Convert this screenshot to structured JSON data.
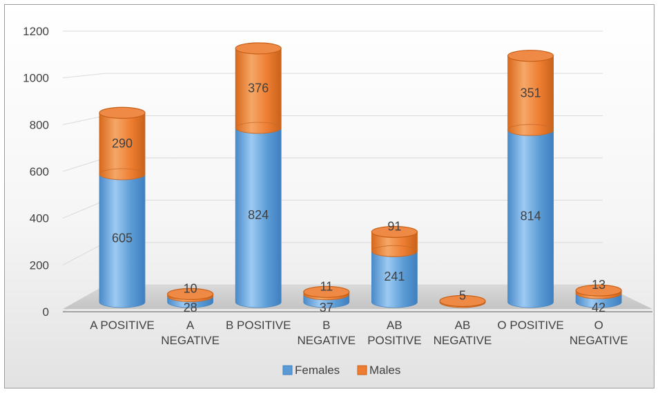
{
  "chart_data": {
    "type": "bar",
    "stacked": true,
    "style": "3d-cylinder",
    "categories": [
      [
        "A POSITIVE"
      ],
      [
        "A",
        "NEGATIVE"
      ],
      [
        "B POSITIVE"
      ],
      [
        "B",
        "NEGATIVE"
      ],
      [
        "AB",
        "POSITIVE"
      ],
      [
        "AB",
        "NEGATIVE"
      ],
      [
        "O POSITIVE"
      ],
      [
        "O",
        "NEGATIVE"
      ]
    ],
    "series": [
      {
        "name": "Females",
        "values": [
          605,
          28,
          824,
          37,
          241,
          null,
          814,
          42
        ],
        "color": "#5b9bd5"
      },
      {
        "name": "Males",
        "values": [
          290,
          10,
          376,
          11,
          91,
          5,
          351,
          13
        ],
        "color": "#ed7d31"
      }
    ],
    "data_labels": [
      [
        "605",
        "28",
        "824",
        "37",
        "241",
        "",
        "814",
        "42"
      ],
      [
        "290",
        "10",
        "376",
        "11",
        "91",
        "5",
        "351",
        "13"
      ]
    ],
    "yticks": [
      "0",
      "200",
      "400",
      "600",
      "800",
      "1000",
      "1200"
    ],
    "ylim": [
      0,
      1200
    ],
    "grid": true,
    "legend": "bottom"
  }
}
